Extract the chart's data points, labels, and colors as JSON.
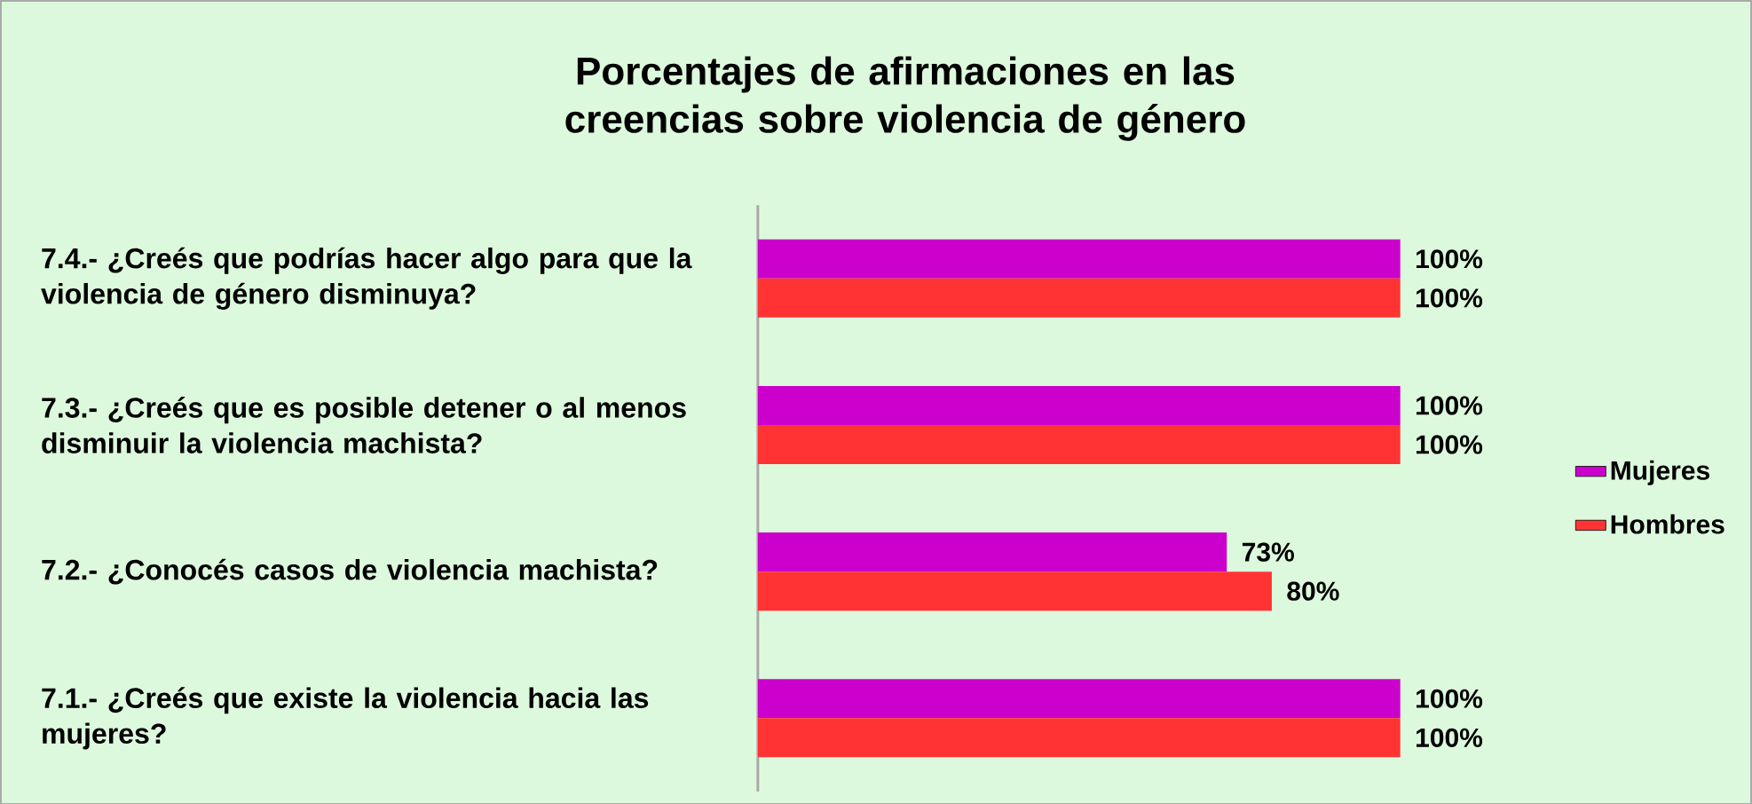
{
  "chart_data": {
    "type": "bar",
    "orientation": "horizontal",
    "title": "Porcentajes de afirmaciones en las creencias sobre violencia de género",
    "categories": [
      "7.4.- ¿Creés que podrías hacer algo para que la violencia de género disminuya?",
      "7.3.- ¿Creés que es posible detener o al menos disminuir la violencia machista?",
      "7.2.- ¿Conocés casos de violencia machista?",
      "7.1.- ¿Creés que existe la violencia hacia las mujeres?"
    ],
    "series": [
      {
        "name": "Mujeres",
        "color": "#cc00cc",
        "values": [
          100,
          100,
          73,
          100
        ],
        "value_labels": [
          "100%",
          "100%",
          "73%",
          "100%"
        ]
      },
      {
        "name": "Hombres",
        "color": "#ff3333",
        "values": [
          100,
          100,
          80,
          100
        ],
        "value_labels": [
          "100%",
          "100%",
          "80%",
          "100%"
        ]
      }
    ],
    "legend": "right"
  }
}
